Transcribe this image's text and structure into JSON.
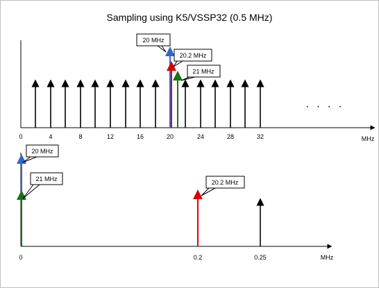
{
  "title": "Sampling using K5/VSSP32 (0.5 MHz)",
  "colors": {
    "black": "#000000",
    "blue": "#3366cc",
    "red": "#dd0000",
    "green": "#117711"
  },
  "top_plot": {
    "axis_unit": "MHz",
    "ticks": [
      "0",
      "4",
      "8",
      "12",
      "16",
      "20",
      "24",
      "28",
      "32"
    ],
    "ellipsis": "· · · ·",
    "callouts": {
      "c20": "20 MHz",
      "c202": "20.2 MHz",
      "c21": "21 MHz"
    }
  },
  "bottom_plot": {
    "axis_unit": "MHz",
    "ticks": [
      "0",
      "0.2",
      "0.25"
    ],
    "callouts": {
      "c20": "20 MHz",
      "c21": "21 MHz",
      "c202": "20.2 MHz"
    }
  }
}
